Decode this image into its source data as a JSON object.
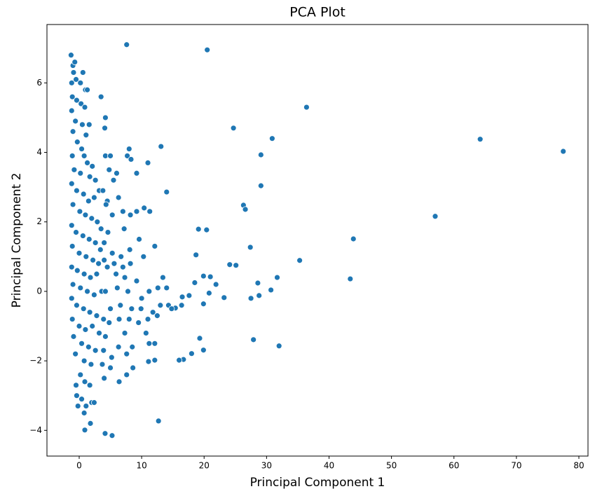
{
  "chart_data": {
    "type": "scatter",
    "title": "PCA Plot",
    "xlabel": "Principal Component 1",
    "ylabel": "Principal Component 2",
    "color": "#1f77b4",
    "xlim": [
      -5.16,
      81.46
    ],
    "ylim": [
      -4.74,
      7.68
    ],
    "xticks": [
      0,
      10,
      20,
      30,
      40,
      50,
      60,
      70,
      80
    ],
    "yticks": [
      {
        "value": -4,
        "label": "−4"
      },
      {
        "value": -2,
        "label": "−2"
      },
      0,
      2,
      4,
      6
    ],
    "x": [
      7.6,
      20.5,
      36.4,
      24.7,
      30.9,
      64.2,
      77.5,
      29.1,
      13.1,
      29.1,
      14.0,
      26.3,
      26.6,
      57.0,
      19.1,
      20.4,
      43.9,
      27.4,
      18.7,
      35.3,
      31.7,
      43.4,
      24.1,
      25.1,
      30.7,
      28.6,
      28.8,
      27.5,
      23.2,
      21.9,
      21.0,
      19.9,
      18.5,
      20.8,
      19.9,
      16.5,
      17.6,
      15.4,
      14.3,
      27.9,
      32.0,
      19.3,
      19.9,
      18.0,
      16.7,
      16.0,
      12.1,
      11.1,
      12.7,
      4.15,
      5.27,
      0.9,
      -1.3,
      -1.0,
      -0.7,
      -0.9,
      -1.2,
      -0.5,
      0.2,
      0.6,
      1.0,
      -1.1,
      -0.4,
      0.3,
      1.3,
      0.9,
      -1.2,
      -0.6,
      0.5,
      1.6,
      1.1,
      -1.0,
      -0.3,
      0.4,
      -1.1,
      0.8,
      1.3,
      2.1,
      -0.8,
      0.2,
      1.7,
      2.6,
      -1.2,
      -0.4,
      0.7,
      1.5,
      2.4,
      3.2,
      -1.0,
      0.1,
      1.0,
      2.0,
      2.9,
      -1.2,
      -0.5,
      0.6,
      1.6,
      2.6,
      3.4,
      -1.1,
      0.0,
      1.1,
      2.2,
      3.1,
      4.0,
      -1.2,
      -0.3,
      0.8,
      1.8,
      2.8,
      -1.0,
      0.2,
      1.3,
      2.4,
      3.6,
      -1.2,
      -0.4,
      0.7,
      1.7,
      2.8,
      3.9,
      -1.1,
      0.0,
      1.0,
      2.1,
      3.2,
      -0.9,
      0.4,
      1.5,
      2.6,
      -0.6,
      0.8,
      1.9,
      0.2,
      -0.5,
      0.9,
      1.7,
      -0.4,
      0.4,
      1.1,
      2.0,
      -0.2,
      0.8,
      1.8,
      2.4,
      3.5,
      4.2,
      4.1,
      8.0,
      7.7,
      8.3,
      11.0,
      4.2,
      5.0,
      4.8,
      6.0,
      9.2,
      5.5,
      3.8,
      4.5,
      6.3,
      4.3,
      7.0,
      8.2,
      10.4,
      11.3,
      5.3,
      9.2,
      3.5,
      4.6,
      7.2,
      4.0,
      9.6,
      12.1,
      5.3,
      6.7,
      8.1,
      10.3,
      4.5,
      5.6,
      7.0,
      8.2,
      5.9,
      7.3,
      9.2,
      13.4,
      4.2,
      6.1,
      7.8,
      11.2,
      12.6,
      14.0,
      10.0,
      13.0,
      5.0,
      6.6,
      8.4,
      9.9,
      11.8,
      14.8,
      16.4,
      4.8,
      6.4,
      8.0,
      9.5,
      11.0,
      12.5,
      4.2,
      7.3,
      10.7,
      3.9,
      6.3,
      8.5,
      11.2,
      12.1,
      5.2,
      7.6,
      3.7,
      5.0,
      8.6,
      6.4,
      4.0,
      7.6
    ],
    "values": [
      7.1,
      6.95,
      5.3,
      4.7,
      4.4,
      4.38,
      4.03,
      3.93,
      4.17,
      3.04,
      2.86,
      2.48,
      2.36,
      2.16,
      1.79,
      1.77,
      1.51,
      1.27,
      1.05,
      0.89,
      0.4,
      0.36,
      0.77,
      0.75,
      0.04,
      0.24,
      -0.12,
      -0.2,
      -0.18,
      0.2,
      0.42,
      0.44,
      0.25,
      -0.05,
      -0.36,
      -0.16,
      -0.12,
      -0.48,
      -0.4,
      -1.39,
      -1.57,
      -1.35,
      -1.69,
      -1.79,
      -1.96,
      -1.98,
      -1.98,
      -2.02,
      -3.73,
      -4.09,
      -4.15,
      -3.99,
      6.8,
      6.5,
      6.6,
      6.3,
      6.0,
      6.1,
      6.0,
      6.3,
      5.8,
      5.6,
      5.5,
      5.4,
      5.8,
      5.3,
      5.2,
      4.9,
      4.8,
      4.8,
      4.5,
      4.6,
      4.3,
      4.1,
      3.9,
      3.9,
      3.7,
      3.6,
      3.5,
      3.4,
      3.3,
      3.2,
      3.1,
      2.9,
      2.8,
      2.6,
      2.7,
      2.9,
      2.5,
      2.3,
      2.2,
      2.1,
      2.0,
      1.9,
      1.7,
      1.6,
      1.5,
      1.4,
      1.2,
      1.3,
      1.1,
      1.0,
      0.9,
      0.8,
      0.9,
      0.7,
      0.6,
      0.5,
      0.4,
      0.5,
      0.2,
      0.1,
      0.0,
      -0.1,
      0.0,
      -0.2,
      -0.4,
      -0.5,
      -0.6,
      -0.7,
      -0.8,
      -0.8,
      -1.0,
      -1.1,
      -1.0,
      -1.2,
      -1.3,
      -1.5,
      -1.6,
      -1.7,
      -1.8,
      -2.0,
      -2.1,
      -2.4,
      -2.7,
      -2.6,
      -2.7,
      -3.0,
      -3.1,
      -3.3,
      -3.2,
      -3.3,
      -3.5,
      -3.8,
      -3.2,
      5.6,
      5.0,
      4.7,
      4.1,
      3.9,
      3.8,
      3.7,
      3.9,
      3.9,
      3.5,
      3.4,
      3.4,
      3.2,
      2.9,
      2.6,
      2.7,
      2.5,
      2.3,
      2.2,
      2.4,
      2.3,
      2.2,
      2.3,
      1.8,
      1.7,
      1.8,
      1.4,
      1.5,
      1.3,
      1.1,
      1.0,
      1.2,
      1.0,
      0.7,
      0.8,
      0.7,
      0.8,
      0.5,
      0.4,
      0.3,
      0.4,
      0.0,
      0.1,
      0.0,
      0.0,
      0.1,
      0.1,
      -0.2,
      -0.4,
      -0.5,
      -0.4,
      -0.5,
      -0.5,
      -0.6,
      -0.5,
      -0.4,
      -0.9,
      -0.8,
      -0.8,
      -0.9,
      -0.8,
      -0.7,
      -1.3,
      -1.2,
      -1.2,
      -1.7,
      -1.6,
      -1.6,
      -1.5,
      -1.5,
      -1.9,
      -1.8,
      -2.1,
      -2.2,
      -2.2,
      -2.6,
      -2.5,
      -2.4
    ]
  }
}
